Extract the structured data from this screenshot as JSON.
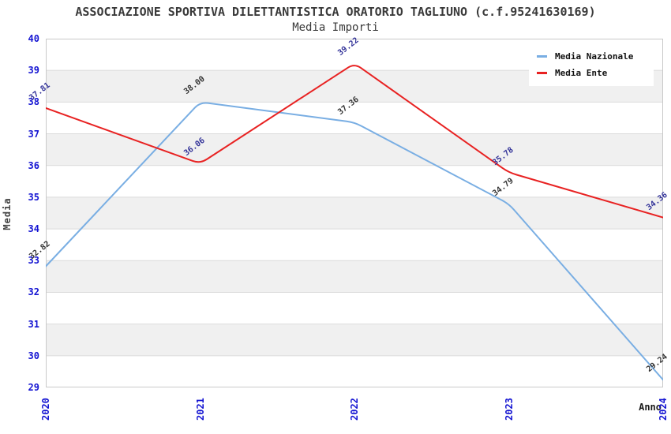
{
  "figure": {
    "title": "ASSOCIAZIONE SPORTIVA DILETTANTISTICA ORATORIO TAGLIUNO (c.f.95241630169)",
    "subtitle": "Media Importi"
  },
  "chart_data": {
    "type": "line",
    "title": "ASSOCIAZIONE SPORTIVA DILETTANTISTICA ORATORIO TAGLIUNO (c.f.95241630169)",
    "subtitle": "Media Importi",
    "x": [
      "2020",
      "2021",
      "2022",
      "2023",
      "2024"
    ],
    "xlabel": "Anno",
    "ylabel": "Media",
    "ylim": [
      29,
      40
    ],
    "yticks": [
      29,
      30,
      31,
      32,
      33,
      34,
      35,
      36,
      37,
      38,
      39,
      40
    ],
    "grid": "horizontal-bands",
    "legend_position": "top-right",
    "series": [
      {
        "name": "Media Nazionale",
        "values": [
          32.82,
          38.0,
          37.36,
          34.79,
          29.24
        ],
        "labels": [
          "32.82",
          "38.00",
          "37.36",
          "34.79",
          "29.24"
        ],
        "color": "#79AEE3",
        "label_color": "#333333"
      },
      {
        "name": "Media Ente",
        "values": [
          37.81,
          36.06,
          39.22,
          35.78,
          34.36
        ],
        "labels": [
          "37.81",
          "36.06",
          "39.22",
          "35.78",
          "34.36"
        ],
        "color": "#E82222",
        "label_color": "#333399"
      }
    ],
    "colors": {
      "tick_label": "#1414D2",
      "band_fill": "#F0F0F0",
      "gridline": "#DBDBDB",
      "plot_border": "#C9C9C9",
      "title_text": "#3A3A3A"
    }
  }
}
